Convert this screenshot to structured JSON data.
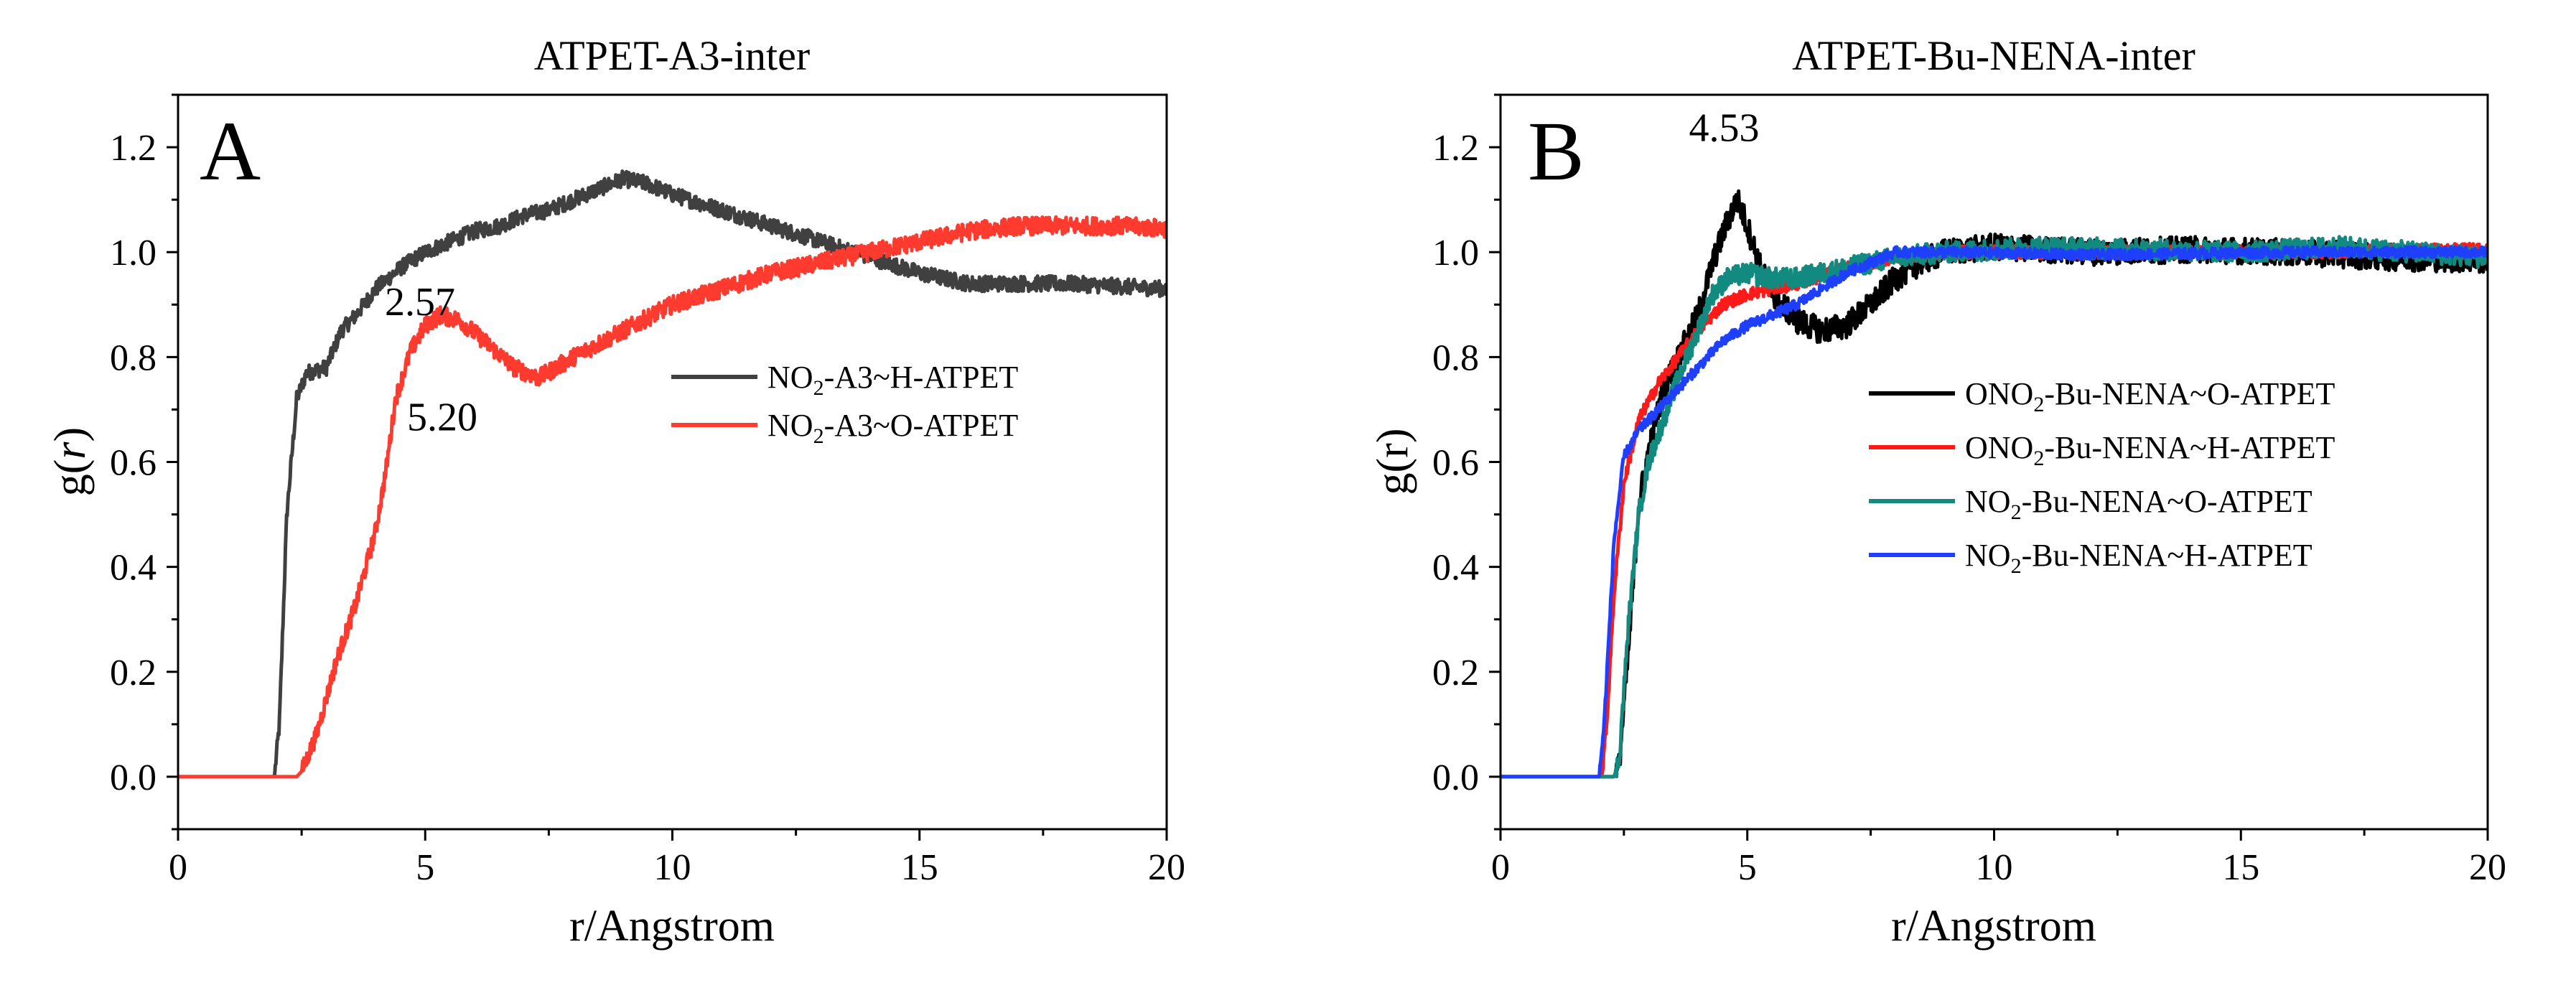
{
  "chart_data": [
    {
      "type": "line",
      "panel_letter": "A",
      "title": "ATPET-A3-inter",
      "xlabel": "r/Angstrom",
      "ylabel_base": "g(",
      "ylabel_var": "r",
      "ylabel_end": ")",
      "xlim": [
        0,
        20
      ],
      "ylim": [
        -0.1,
        1.3
      ],
      "xticks": [
        0,
        5,
        10,
        15,
        20
      ],
      "yticks": [
        0.0,
        0.2,
        0.4,
        0.6,
        0.8,
        1.0,
        1.2
      ],
      "xtick_labels": [
        "0",
        "5",
        "10",
        "15",
        "20"
      ],
      "ytick_labels": [
        "0.0",
        "0.2",
        "0.4",
        "0.6",
        "0.8",
        "1.0",
        "1.2"
      ],
      "legend_position": "center-right",
      "annotations": [
        {
          "text": "2.57",
          "x": 2.57,
          "y": 0.88
        },
        {
          "text": "5.20",
          "x": 5.2,
          "y": 0.66
        }
      ],
      "series": [
        {
          "name": "NO2-A3~H-ATPET",
          "label_pre": "NO",
          "label_sub": "2",
          "label_post": "-A3~H-ATPET",
          "color": "#404040",
          "noise": 0.015,
          "points": [
            [
              0,
              0
            ],
            [
              1.95,
              0
            ],
            [
              2.05,
              0.1
            ],
            [
              2.2,
              0.5
            ],
            [
              2.4,
              0.72
            ],
            [
              2.6,
              0.77
            ],
            [
              3,
              0.78
            ],
            [
              3.3,
              0.85
            ],
            [
              3.6,
              0.88
            ],
            [
              4,
              0.93
            ],
            [
              4.5,
              0.97
            ],
            [
              5,
              1.0
            ],
            [
              5.5,
              1.02
            ],
            [
              6,
              1.04
            ],
            [
              6.5,
              1.05
            ],
            [
              7,
              1.07
            ],
            [
              7.5,
              1.08
            ],
            [
              8,
              1.1
            ],
            [
              8.5,
              1.12
            ],
            [
              9,
              1.14
            ],
            [
              9.5,
              1.13
            ],
            [
              10,
              1.11
            ],
            [
              11,
              1.08
            ],
            [
              12,
              1.05
            ],
            [
              13,
              1.02
            ],
            [
              14,
              0.99
            ],
            [
              15,
              0.96
            ],
            [
              16,
              0.94
            ],
            [
              17,
              0.94
            ],
            [
              18,
              0.94
            ],
            [
              19,
              0.935
            ],
            [
              20,
              0.93
            ]
          ]
        },
        {
          "name": "NO2-A3~O-ATPET",
          "label_pre": "NO",
          "label_sub": "2",
          "label_post": "-A3~O-ATPET",
          "color": "#ff3b30",
          "noise": 0.017,
          "points": [
            [
              0,
              0
            ],
            [
              2.4,
              0
            ],
            [
              2.5,
              0.01
            ],
            [
              2.8,
              0.08
            ],
            [
              3.2,
              0.22
            ],
            [
              3.6,
              0.33
            ],
            [
              4,
              0.47
            ],
            [
              4.2,
              0.58
            ],
            [
              4.4,
              0.72
            ],
            [
              4.7,
              0.81
            ],
            [
              5,
              0.86
            ],
            [
              5.3,
              0.88
            ],
            [
              5.7,
              0.87
            ],
            [
              6.2,
              0.83
            ],
            [
              6.8,
              0.78
            ],
            [
              7.3,
              0.76
            ],
            [
              8,
              0.8
            ],
            [
              9,
              0.85
            ],
            [
              10,
              0.9
            ],
            [
              11,
              0.93
            ],
            [
              12,
              0.96
            ],
            [
              13,
              0.98
            ],
            [
              14,
              1.0
            ],
            [
              15,
              1.02
            ],
            [
              16,
              1.04
            ],
            [
              17,
              1.05
            ],
            [
              18,
              1.05
            ],
            [
              19,
              1.05
            ],
            [
              20,
              1.045
            ]
          ]
        }
      ]
    },
    {
      "type": "line",
      "panel_letter": "B",
      "title": "ATPET-Bu-NENA-inter",
      "xlabel": "r/Angstrom",
      "ylabel_base": "g(r)",
      "ylabel_var": "",
      "ylabel_end": "",
      "xlim": [
        0,
        20
      ],
      "ylim": [
        -0.1,
        1.3
      ],
      "xticks": [
        0,
        5,
        10,
        15,
        20
      ],
      "yticks": [
        0.0,
        0.2,
        0.4,
        0.6,
        0.8,
        1.0,
        1.2
      ],
      "xtick_labels": [
        "0",
        "5",
        "10",
        "15",
        "20"
      ],
      "ytick_labels": [
        "0.0",
        "0.2",
        "0.4",
        "0.6",
        "0.8",
        "1.0",
        "1.2"
      ],
      "legend_position": "center-right",
      "annotations": [
        {
          "text": "4.53",
          "x": 4.53,
          "y": 1.16
        }
      ],
      "series": [
        {
          "name": "ONO2-Bu-NENA~O-ATPET",
          "label_pre": "ONO",
          "label_sub": "2",
          "label_post": "-Bu-NENA~O-ATPET",
          "color": "#000000",
          "noise": 0.025,
          "points": [
            [
              0,
              0
            ],
            [
              2.3,
              0
            ],
            [
              2.4,
              0.02
            ],
            [
              2.6,
              0.25
            ],
            [
              2.8,
              0.52
            ],
            [
              3,
              0.62
            ],
            [
              3.3,
              0.74
            ],
            [
              3.7,
              0.82
            ],
            [
              4,
              0.88
            ],
            [
              4.3,
              0.98
            ],
            [
              4.6,
              1.06
            ],
            [
              4.8,
              1.1
            ],
            [
              5,
              1.05
            ],
            [
              5.3,
              0.96
            ],
            [
              5.6,
              0.91
            ],
            [
              6,
              0.87
            ],
            [
              6.5,
              0.85
            ],
            [
              7,
              0.86
            ],
            [
              7.5,
              0.9
            ],
            [
              8,
              0.95
            ],
            [
              8.5,
              0.98
            ],
            [
              9,
              1.0
            ],
            [
              10,
              1.01
            ],
            [
              12,
              1.0
            ],
            [
              14,
              1.005
            ],
            [
              16,
              1.0
            ],
            [
              18,
              0.99
            ],
            [
              20,
              0.985
            ]
          ]
        },
        {
          "name": "ONO2-Bu-NENA~H-ATPET",
          "label_pre": "ONO",
          "label_sub": "2",
          "label_post": "-Bu-NENA~H-ATPET",
          "color": "#ff1a1a",
          "noise": 0.012,
          "points": [
            [
              0,
              0
            ],
            [
              2.05,
              0
            ],
            [
              2.15,
              0.1
            ],
            [
              2.3,
              0.35
            ],
            [
              2.5,
              0.56
            ],
            [
              2.8,
              0.68
            ],
            [
              3.2,
              0.75
            ],
            [
              3.6,
              0.8
            ],
            [
              4,
              0.85
            ],
            [
              4.5,
              0.9
            ],
            [
              5,
              0.92
            ],
            [
              5.5,
              0.93
            ],
            [
              6,
              0.94
            ],
            [
              7,
              0.97
            ],
            [
              8,
              0.99
            ],
            [
              9,
              1.0
            ],
            [
              12,
              1.0
            ],
            [
              16,
              1.0
            ],
            [
              20,
              1.005
            ]
          ]
        },
        {
          "name": "NO2-Bu-NENA~O-ATPET",
          "label_pre": "NO",
          "label_sub": "2",
          "label_post": "-Bu-NENA~O-ATPET",
          "color": "#138a80",
          "noise": 0.02,
          "points": [
            [
              0,
              0
            ],
            [
              2.3,
              0
            ],
            [
              2.4,
              0.03
            ],
            [
              2.6,
              0.3
            ],
            [
              2.8,
              0.5
            ],
            [
              3,
              0.6
            ],
            [
              3.3,
              0.68
            ],
            [
              3.6,
              0.76
            ],
            [
              4,
              0.85
            ],
            [
              4.3,
              0.92
            ],
            [
              4.6,
              0.95
            ],
            [
              5,
              0.96
            ],
            [
              5.5,
              0.95
            ],
            [
              6,
              0.95
            ],
            [
              7,
              0.97
            ],
            [
              8,
              0.99
            ],
            [
              9,
              1.0
            ],
            [
              11,
              1.01
            ],
            [
              13,
              1.005
            ],
            [
              15,
              1.0
            ],
            [
              17,
              1.01
            ],
            [
              20,
              0.99
            ]
          ]
        },
        {
          "name": "NO2-Bu-NENA~H-ATPET",
          "label_pre": "NO",
          "label_sub": "2",
          "label_post": "-Bu-NENA~H-ATPET",
          "color": "#1f3fff",
          "noise": 0.01,
          "points": [
            [
              0,
              0
            ],
            [
              2,
              0
            ],
            [
              2.1,
              0.1
            ],
            [
              2.3,
              0.45
            ],
            [
              2.5,
              0.61
            ],
            [
              2.8,
              0.66
            ],
            [
              3.2,
              0.7
            ],
            [
              3.6,
              0.74
            ],
            [
              4,
              0.78
            ],
            [
              4.5,
              0.83
            ],
            [
              5,
              0.86
            ],
            [
              5.5,
              0.88
            ],
            [
              6,
              0.9
            ],
            [
              6.5,
              0.93
            ],
            [
              7,
              0.96
            ],
            [
              7.5,
              0.98
            ],
            [
              8,
              1.0
            ],
            [
              9,
              1.0
            ],
            [
              12,
              0.995
            ],
            [
              16,
              1.0
            ],
            [
              20,
              1.0
            ]
          ]
        }
      ]
    }
  ]
}
